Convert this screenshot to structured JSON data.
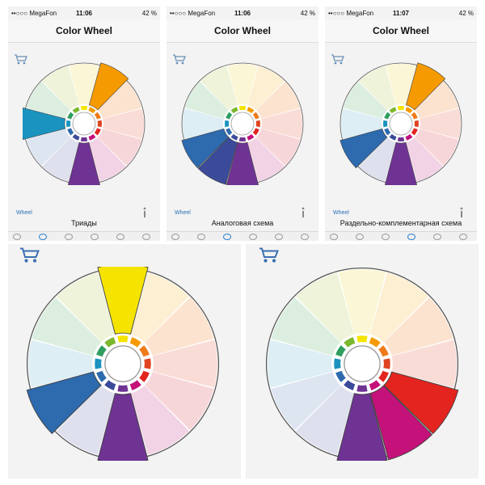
{
  "status": {
    "carrier": "••○○○ MegaFon",
    "battery": "42 %"
  },
  "screens": [
    {
      "time": "11:06",
      "title": "Color Wheel",
      "wheel_link": "Wheel",
      "scheme": "Триады"
    },
    {
      "time": "11:06",
      "title": "Color Wheel",
      "wheel_link": "Wheel",
      "scheme": "Аналоговая схема"
    },
    {
      "time": "11:07",
      "title": "Color Wheel",
      "wheel_link": "Wheel",
      "scheme": "Раздельно-комплементарная схема"
    }
  ],
  "palette": {
    "hues": [
      "#F5E400",
      "#F59A00",
      "#EE7A1A",
      "#E0431F",
      "#E3241F",
      "#C4127A",
      "#6E3393",
      "#3B4B9A",
      "#2D6AAE",
      "#1A93BF",
      "#2F9E5E",
      "#7BB82D"
    ],
    "pastels": [
      "#FBF6D6",
      "#FCEFD2",
      "#FCE3D0",
      "#FADCD6",
      "#F7D6D9",
      "#F2D3E5",
      "#E6DAEC",
      "#DEE0EE",
      "#DDE5F1",
      "#DDEEF4",
      "#DCEEDF",
      "#EEF3D9"
    ]
  },
  "wheels": [
    {
      "id": "w1",
      "sat": [
        6,
        9,
        1
      ]
    },
    {
      "id": "w2",
      "sat": [
        6,
        7,
        8
      ]
    },
    {
      "id": "w3",
      "sat": [
        1,
        6,
        8
      ]
    },
    {
      "id": "w4",
      "sat": [
        0,
        6,
        8
      ]
    },
    {
      "id": "w5",
      "sat": [
        4,
        5,
        6
      ]
    }
  ]
}
